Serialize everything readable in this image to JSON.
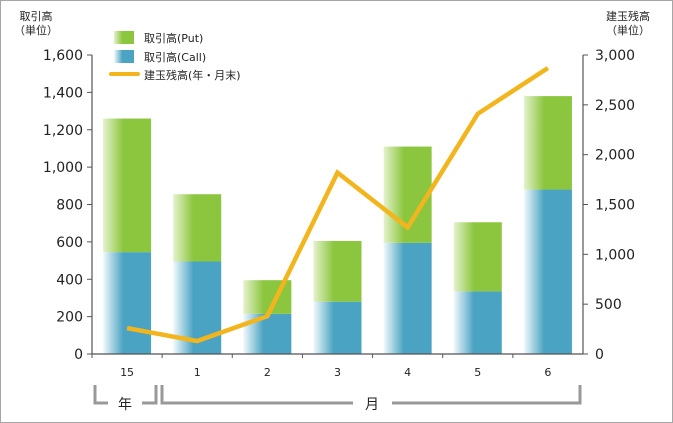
{
  "chart_data": {
    "type": "bar+line",
    "categories": [
      "15",
      "1",
      "2",
      "3",
      "4",
      "5",
      "6"
    ],
    "series": [
      {
        "name": "取引高(Call)",
        "kind": "stacked-bar",
        "axis": "left",
        "values": [
          545,
          495,
          215,
          280,
          595,
          335,
          880
        ]
      },
      {
        "name": "取引高(Put)",
        "kind": "stacked-bar",
        "axis": "left",
        "values": [
          715,
          360,
          180,
          325,
          515,
          370,
          500
        ]
      },
      {
        "name": "建玉残高(年・月末)",
        "kind": "line",
        "axis": "right",
        "values": [
          260,
          130,
          380,
          1820,
          1270,
          2410,
          2870
        ]
      }
    ],
    "left_axis": {
      "label_line1": "取引高",
      "label_line2": "（単位）",
      "ylim": [
        0,
        1600
      ],
      "ticks": [
        "0",
        "200",
        "400",
        "600",
        "800",
        "1,000",
        "1,200",
        "1,400",
        "1,600"
      ]
    },
    "right_axis": {
      "label_line1": "建玉残高",
      "label_line2": "（単位）",
      "ylim": [
        0,
        3000
      ],
      "ticks": [
        "0",
        "500",
        "1,000",
        "1,500",
        "2,000",
        "2,500",
        "3,000"
      ]
    },
    "legend": {
      "placement": "top-left",
      "items": [
        "取引高(Put)",
        "取引高(Call)",
        "建玉残高(年・月末)"
      ]
    },
    "group_labels": {
      "year": "年",
      "month": "月"
    },
    "colors": {
      "put_light": "#e4f2cc",
      "put_dark": "#8cc63f",
      "call_light": "#f2f9fc",
      "call_dark": "#4aa3c2",
      "line": "#f2b51d",
      "axis": "#555555",
      "bracket": "#999999"
    }
  }
}
